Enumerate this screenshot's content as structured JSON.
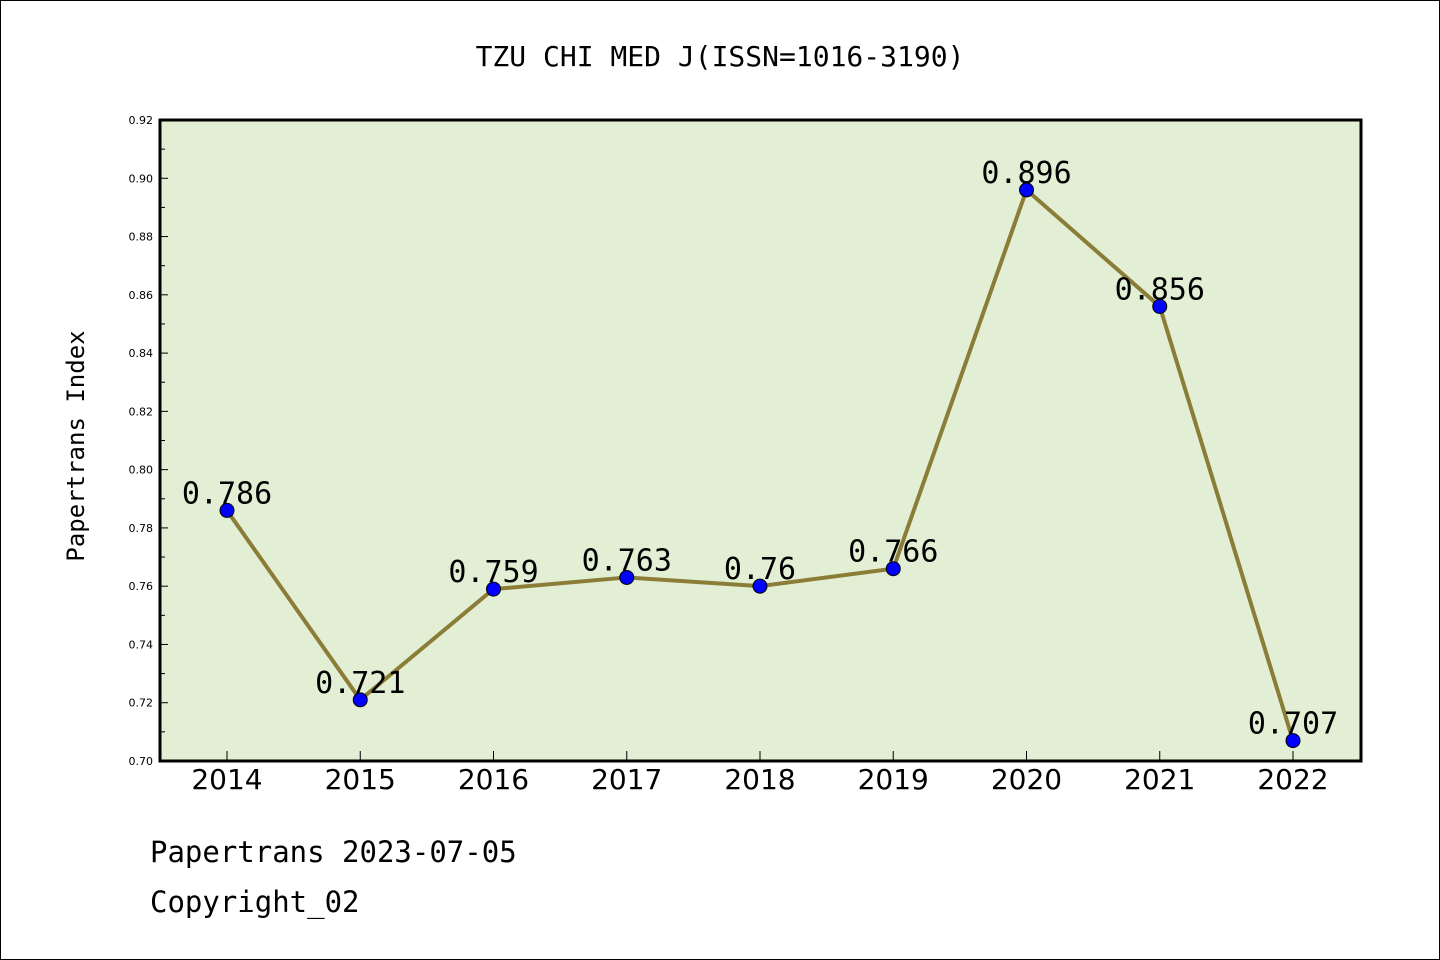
{
  "chart_data": {
    "type": "line",
    "title": "TZU CHI MED J(ISSN=1016-3190)",
    "xlabel": "",
    "ylabel": "Papertrans Index",
    "categories": [
      "2014",
      "2015",
      "2016",
      "2017",
      "2018",
      "2019",
      "2020",
      "2021",
      "2022"
    ],
    "series": [
      {
        "values": [
          0.786,
          0.721,
          0.759,
          0.763,
          0.76,
          0.766,
          0.896,
          0.856,
          0.707
        ],
        "labels": [
          "0.786",
          "0.721",
          "0.759",
          "0.763",
          "0.76",
          "0.766",
          "0.896",
          "0.856",
          "0.707"
        ]
      }
    ],
    "ylim": [
      0.7,
      0.92
    ],
    "yticks": [
      "0.70",
      "0.72",
      "0.74",
      "0.76",
      "0.78",
      "0.80",
      "0.82",
      "0.84",
      "0.86",
      "0.88",
      "0.90",
      "0.92"
    ],
    "grid": false,
    "legend": "none",
    "colors": {
      "plot_background": "#e2efd5",
      "line": "#8b7d37",
      "marker": "#0000ff",
      "marker_edge": "#000000"
    }
  },
  "footer": {
    "line1": "Papertrans 2023-07-05",
    "line2": "Copyright_02"
  }
}
